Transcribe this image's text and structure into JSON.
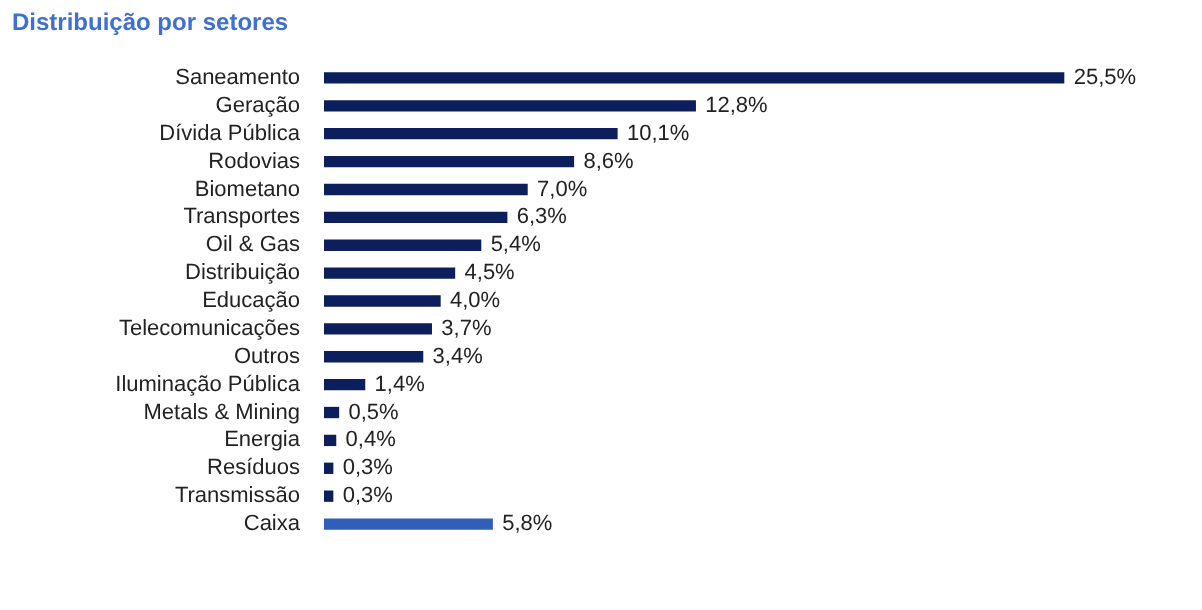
{
  "chart_data": {
    "type": "bar",
    "orientation": "horizontal",
    "title": "Distribuição por setores",
    "categories": [
      "Saneamento",
      "Geração",
      "Dívida Pública",
      "Rodovias",
      "Biometano",
      "Transportes",
      "Oil & Gas",
      "Distribuição",
      "Educação",
      "Telecomunicações",
      "Outros",
      "Iluminação Pública",
      "Metals & Mining",
      "Energia",
      "Resíduos",
      "Transmissão",
      "Caixa"
    ],
    "values": [
      25.5,
      12.8,
      10.1,
      8.6,
      7.0,
      6.3,
      5.4,
      4.5,
      4.0,
      3.7,
      3.4,
      1.4,
      0.5,
      0.4,
      0.3,
      0.3,
      5.8
    ],
    "colors": [
      "#0c1e5b",
      "#0c1e5b",
      "#0c1e5b",
      "#0c1e5b",
      "#0c1e5b",
      "#0c1e5b",
      "#0c1e5b",
      "#0c1e5b",
      "#0c1e5b",
      "#0c1e5b",
      "#0c1e5b",
      "#0c1e5b",
      "#0c1e5b",
      "#0c1e5b",
      "#0c1e5b",
      "#0c1e5b",
      "#2f5fb8"
    ],
    "value_labels": [
      "25,5%",
      "12,8%",
      "10,1%",
      "8,6%",
      "7,0%",
      "6,3%",
      "5,4%",
      "4,5%",
      "4,0%",
      "3,7%",
      "3,4%",
      "1,4%",
      "0,5%",
      "0,4%",
      "0,3%",
      "0,3%",
      "5,8%"
    ],
    "tick_labels": "y",
    "legend": false
  }
}
